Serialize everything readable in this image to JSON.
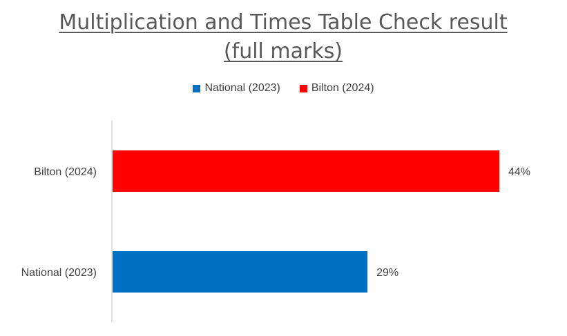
{
  "chart_data": {
    "type": "bar",
    "orientation": "horizontal",
    "title": "Multiplication and Times Table Check result (full marks)",
    "categories": [
      "National (2023)",
      "Bilton (2024)"
    ],
    "values": [
      29,
      44
    ],
    "value_labels": [
      "29%",
      "44%"
    ],
    "colors": [
      "#0070C0",
      "#FF0000"
    ],
    "legend": [
      {
        "label": "National (2023)",
        "color": "#0070C0"
      },
      {
        "label": "Bilton (2024)",
        "color": "#FF0000"
      }
    ],
    "legend_position": "top",
    "xlim": [
      0,
      45
    ],
    "grid": false,
    "xlabel": "",
    "ylabel": ""
  }
}
